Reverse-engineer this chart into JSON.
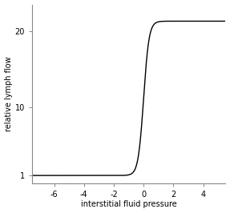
{
  "title": "",
  "xlabel": "interstitial fluid pressure",
  "ylabel": "relative lymph flow",
  "xlim": [
    -7.5,
    5.5
  ],
  "ylim": [
    0.0,
    23.5
  ],
  "xticks": [
    -6,
    -4,
    -2,
    0,
    2,
    4
  ],
  "yticks": [
    1,
    10,
    20
  ],
  "ytick_labels": [
    "1",
    "10",
    "20"
  ],
  "curve_color": "#000000",
  "curve_linewidth": 1.0,
  "background_color": "#ffffff",
  "x_start": -7.5,
  "x_end": 5.5,
  "y_min": 1.0,
  "y_max": 21.3,
  "inflection_x": 0.0,
  "slope": 5.5
}
